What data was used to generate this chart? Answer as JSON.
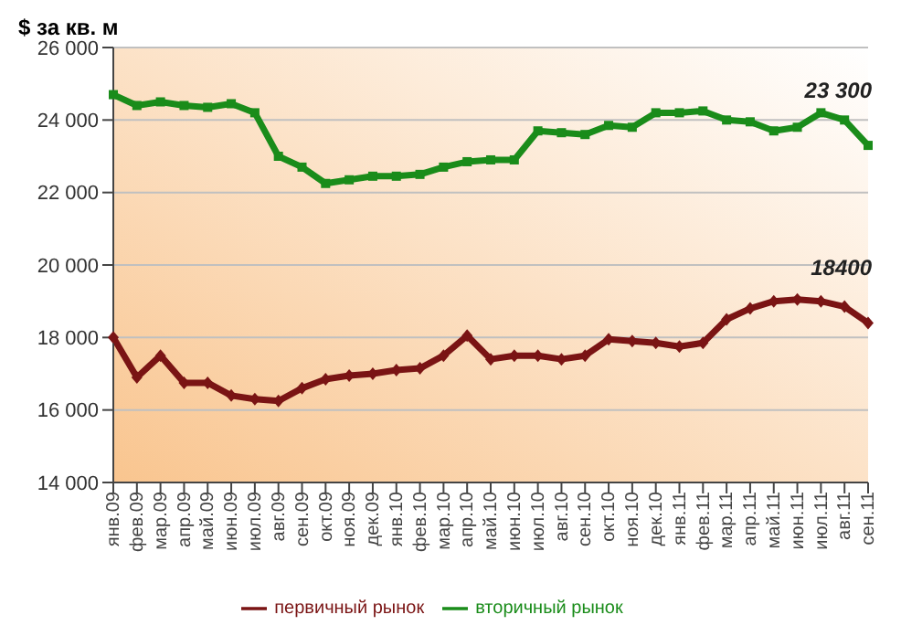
{
  "chart_data": {
    "type": "line",
    "ylabel": "$ за кв. м",
    "categories": [
      "янв.09",
      "фев.09",
      "мар.09",
      "апр.09",
      "май.09",
      "июн.09",
      "июл.09",
      "авг.09",
      "сен.09",
      "окт.09",
      "ноя.09",
      "дек.09",
      "янв.10",
      "фев.10",
      "мар.10",
      "апр.10",
      "май.10",
      "июн.10",
      "июл.10",
      "авг.10",
      "сен.10",
      "окт.10",
      "ноя.10",
      "дек.10",
      "янв.11",
      "фев.11",
      "мар.11",
      "апр.11",
      "май.11",
      "июн.11",
      "июл.11",
      "авг.11",
      "сен.11"
    ],
    "series": [
      {
        "name": "первичный рынок",
        "color": "#7a1414",
        "marker": "diamond",
        "values": [
          18000,
          16900,
          17500,
          16750,
          16750,
          16400,
          16300,
          16250,
          16600,
          16850,
          16950,
          17000,
          17100,
          17150,
          17500,
          18050,
          17400,
          17500,
          17500,
          17400,
          17500,
          17950,
          17900,
          17850,
          17750,
          17850,
          18500,
          18800,
          19000,
          19050,
          19000,
          18850,
          18400
        ]
      },
      {
        "name": "вторичный рынок",
        "color": "#1a8c1a",
        "marker": "square",
        "values": [
          24700,
          24400,
          24500,
          24400,
          24350,
          24450,
          24200,
          23000,
          22700,
          22250,
          22350,
          22450,
          22450,
          22500,
          22700,
          22850,
          22900,
          22900,
          23700,
          23650,
          23600,
          23850,
          23800,
          24200,
          24200,
          24250,
          24000,
          23950,
          23700,
          23800,
          24200,
          24000,
          23300
        ]
      }
    ],
    "ylim": [
      14000,
      26000
    ],
    "yticks": [
      {
        "value": 14000,
        "label": "14 000"
      },
      {
        "value": 16000,
        "label": "16 000"
      },
      {
        "value": 18000,
        "label": "18 000"
      },
      {
        "value": 20000,
        "label": "20 000"
      },
      {
        "value": 22000,
        "label": "22 000"
      },
      {
        "value": 24000,
        "label": "24 000"
      },
      {
        "value": 26000,
        "label": "26 000"
      }
    ],
    "grid": "y",
    "legend": "bottom",
    "line_style": "solid",
    "annotations": [
      {
        "text": "23 300",
        "x": "сен.11",
        "y": 23300
      },
      {
        "text": "18400",
        "x": "сен.11",
        "y": 18400
      }
    ]
  }
}
